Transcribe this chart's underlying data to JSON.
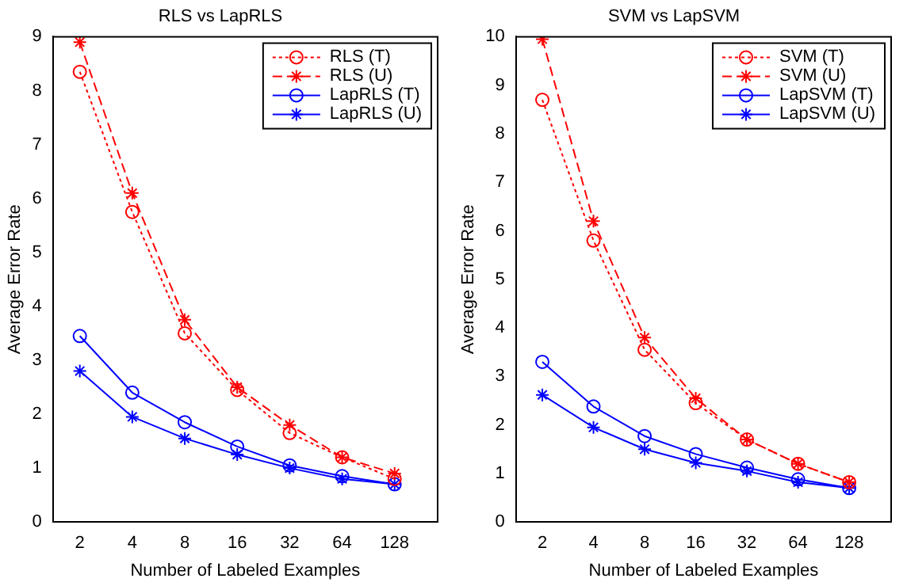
{
  "chart_data": [
    {
      "type": "line",
      "title": "RLS vs LapRLS",
      "xlabel": "Number of Labeled Examples",
      "ylabel": "Average Error Rate",
      "log": "x",
      "x": [
        2,
        4,
        8,
        16,
        32,
        64,
        128
      ],
      "xlim": [
        1.4,
        226
      ],
      "xticks": [
        2,
        4,
        8,
        16,
        32,
        64,
        128
      ],
      "ylim": [
        0,
        9
      ],
      "yticks": [
        0,
        1,
        2,
        3,
        4,
        5,
        6,
        7,
        8,
        9
      ],
      "grid": false,
      "legend": "top right",
      "series": [
        {
          "name": "RLS (T)",
          "color": "#ff0000",
          "marker": "circle",
          "line_style": "dotted",
          "values": [
            8.35,
            5.75,
            3.5,
            2.45,
            1.65,
            1.2,
            0.8
          ]
        },
        {
          "name": "RLS (U)",
          "color": "#ff0000",
          "marker": "cross",
          "line_style": "dashed",
          "values": [
            8.9,
            6.1,
            3.75,
            2.5,
            1.8,
            1.2,
            0.9
          ]
        },
        {
          "name": "LapRLS (T)",
          "color": "#0000ff",
          "marker": "circle",
          "line_style": "solid",
          "values": [
            3.45,
            2.4,
            1.85,
            1.4,
            1.05,
            0.85,
            0.7
          ]
        },
        {
          "name": "LapRLS (U)",
          "color": "#0000ff",
          "marker": "cross",
          "line_style": "solid",
          "values": [
            2.8,
            1.95,
            1.55,
            1.25,
            1.0,
            0.8,
            0.7
          ]
        }
      ]
    },
    {
      "type": "line",
      "title": "SVM vs LapSVM",
      "xlabel": "Number of Labeled Examples",
      "ylabel": "Average Error Rate",
      "log": "x",
      "x": [
        2,
        4,
        8,
        16,
        32,
        64,
        128
      ],
      "xlim": [
        1.4,
        226
      ],
      "xticks": [
        2,
        4,
        8,
        16,
        32,
        64,
        128
      ],
      "ylim": [
        0,
        10
      ],
      "yticks": [
        0,
        1,
        2,
        3,
        4,
        5,
        6,
        7,
        8,
        9,
        10
      ],
      "grid": false,
      "legend": "top right",
      "series": [
        {
          "name": "SVM (T)",
          "color": "#ff0000",
          "marker": "circle",
          "line_style": "dotted",
          "values": [
            8.7,
            5.8,
            3.55,
            2.45,
            1.7,
            1.2,
            0.82
          ]
        },
        {
          "name": "SVM (U)",
          "color": "#ff0000",
          "marker": "cross",
          "line_style": "dashed",
          "values": [
            9.95,
            6.2,
            3.8,
            2.55,
            1.7,
            1.2,
            0.82
          ]
        },
        {
          "name": "LapSVM (T)",
          "color": "#0000ff",
          "marker": "circle",
          "line_style": "solid",
          "values": [
            3.3,
            2.38,
            1.77,
            1.4,
            1.12,
            0.88,
            0.7
          ]
        },
        {
          "name": "LapSVM (U)",
          "color": "#0000ff",
          "marker": "cross",
          "line_style": "solid",
          "values": [
            2.62,
            1.95,
            1.5,
            1.22,
            1.05,
            0.82,
            0.7
          ]
        }
      ]
    }
  ]
}
